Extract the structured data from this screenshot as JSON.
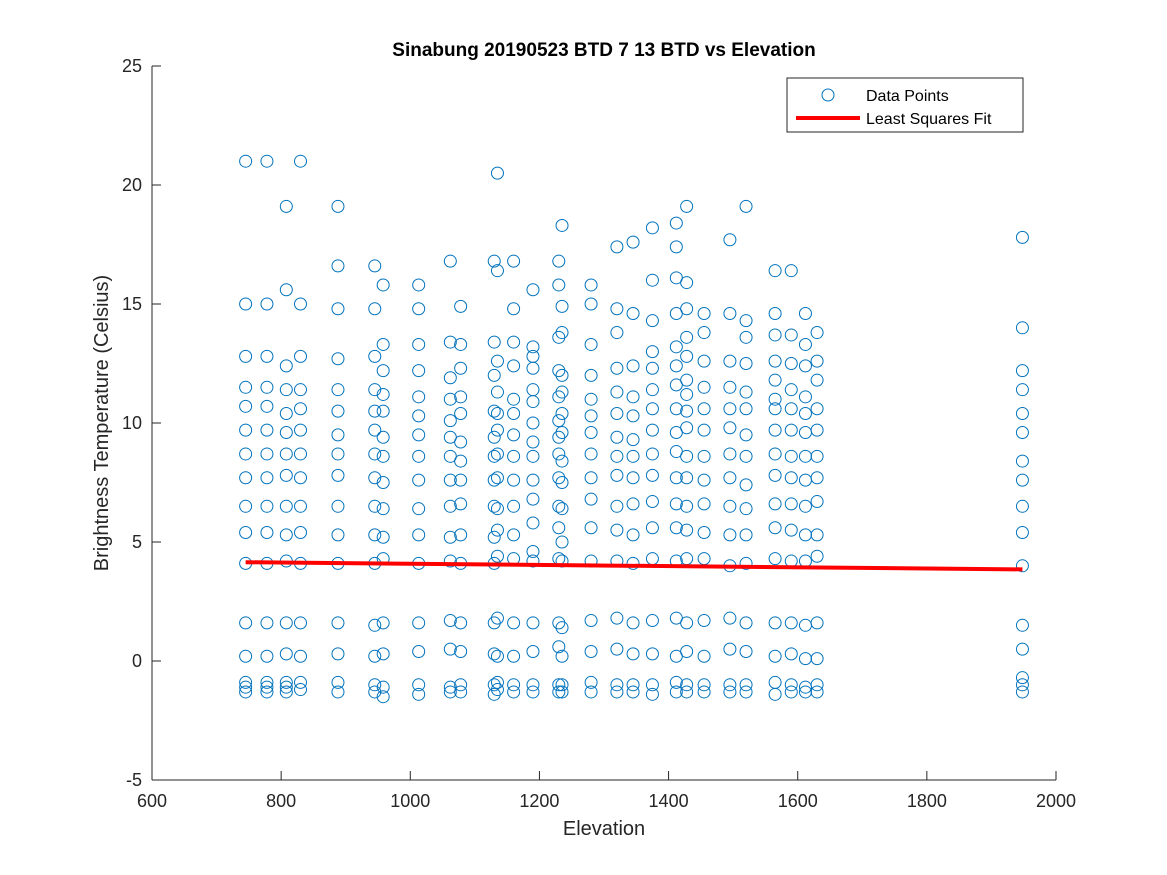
{
  "colors": {
    "points": "#0072BD",
    "fit": "#FF0000",
    "axis": "#262626",
    "background": "#FFFFFF"
  },
  "chart_data": {
    "type": "scatter",
    "title": "Sinabung 20190523 BTD 7 13 BTD vs Elevation",
    "xlabel": "Elevation",
    "ylabel": "Brightness Temperature (Celsius)",
    "xlim": [
      600,
      2000
    ],
    "ylim": [
      -5,
      25
    ],
    "xticks": [
      600,
      800,
      1000,
      1200,
      1400,
      1600,
      1800,
      2000
    ],
    "yticks": [
      -5,
      0,
      5,
      10,
      15,
      20,
      25
    ],
    "grid": false,
    "legend": {
      "position": "top-right",
      "entries": [
        "Data Points",
        "Least Squares Fit"
      ]
    },
    "series": [
      {
        "name": "Data Points",
        "marker": "circle",
        "columns": [
          {
            "x": 745,
            "y": [
              21.0,
              15.0,
              12.8,
              11.5,
              10.7,
              9.7,
              8.7,
              7.7,
              6.5,
              5.4,
              4.1,
              1.6,
              0.2,
              -0.9,
              -1.1,
              -1.3
            ]
          },
          {
            "x": 778,
            "y": [
              21.0,
              15.0,
              12.8,
              11.5,
              10.7,
              9.7,
              8.7,
              7.7,
              6.5,
              5.4,
              4.1,
              1.6,
              0.2,
              -0.9,
              -1.1,
              -1.3
            ]
          },
          {
            "x": 808,
            "y": [
              19.1,
              15.6,
              12.4,
              11.4,
              10.4,
              9.6,
              8.7,
              7.8,
              6.5,
              5.3,
              4.2,
              1.6,
              0.3,
              -0.9,
              -1.1,
              -1.3
            ]
          },
          {
            "x": 830,
            "y": [
              21.0,
              15.0,
              12.8,
              11.4,
              10.6,
              9.7,
              8.7,
              7.7,
              6.5,
              5.4,
              4.1,
              1.6,
              0.2,
              -0.9,
              -1.2
            ]
          },
          {
            "x": 888,
            "y": [
              19.1,
              16.6,
              14.8,
              12.7,
              11.4,
              10.5,
              9.5,
              8.7,
              7.8,
              6.5,
              5.3,
              4.1,
              1.6,
              0.3,
              -0.9,
              -1.3
            ]
          },
          {
            "x": 945,
            "y": [
              16.6,
              14.8,
              12.8,
              11.4,
              10.5,
              9.7,
              8.7,
              7.7,
              6.5,
              5.3,
              4.1,
              1.5,
              0.2,
              -1.0,
              -1.3
            ]
          },
          {
            "x": 958,
            "y": [
              15.8,
              13.3,
              12.2,
              11.2,
              10.5,
              9.4,
              8.6,
              7.5,
              6.4,
              5.2,
              4.3,
              1.6,
              0.3,
              -1.1,
              -1.5
            ]
          },
          {
            "x": 1013,
            "y": [
              15.8,
              14.8,
              13.3,
              12.2,
              11.1,
              10.3,
              9.5,
              8.6,
              7.6,
              6.4,
              5.3,
              4.1,
              1.6,
              0.4,
              -1.0,
              -1.4
            ]
          },
          {
            "x": 1062,
            "y": [
              16.8,
              13.4,
              11.9,
              11.0,
              10.1,
              9.4,
              8.6,
              7.6,
              6.5,
              5.2,
              4.2,
              1.7,
              0.5,
              -1.1,
              -1.3
            ]
          },
          {
            "x": 1078,
            "y": [
              14.9,
              13.3,
              12.3,
              11.1,
              10.4,
              9.2,
              8.4,
              7.6,
              6.6,
              5.3,
              4.1,
              1.6,
              0.4,
              -1.0,
              -1.3
            ]
          },
          {
            "x": 1130,
            "y": [
              16.8,
              13.4,
              12.0,
              10.5,
              9.4,
              8.6,
              7.6,
              6.5,
              5.2,
              4.1,
              1.6,
              0.3,
              -1.0,
              -1.4
            ]
          },
          {
            "x": 1135,
            "y": [
              20.5,
              16.4,
              12.6,
              11.3,
              10.4,
              9.7,
              8.7,
              7.7,
              6.4,
              5.5,
              4.4,
              1.8,
              0.2,
              -0.9,
              -1.2
            ]
          },
          {
            "x": 1160,
            "y": [
              16.8,
              14.8,
              13.4,
              12.4,
              11.0,
              10.4,
              9.5,
              8.6,
              7.6,
              6.5,
              5.3,
              4.3,
              1.6,
              0.2,
              -1.0,
              -1.3
            ]
          },
          {
            "x": 1190,
            "y": [
              15.6,
              13.2,
              12.8,
              12.3,
              11.4,
              10.9,
              10.0,
              9.2,
              8.6,
              7.6,
              6.8,
              5.8,
              4.6,
              4.2,
              1.6,
              0.4,
              -1.0,
              -1.3
            ]
          },
          {
            "x": 1230,
            "y": [
              16.8,
              15.8,
              13.6,
              12.2,
              11.1,
              10.1,
              9.4,
              8.7,
              7.7,
              6.5,
              5.6,
              4.3,
              1.6,
              0.6,
              -1.0,
              -1.3
            ]
          },
          {
            "x": 1235,
            "y": [
              18.3,
              14.9,
              13.8,
              12.0,
              11.3,
              10.4,
              9.6,
              8.4,
              7.5,
              6.4,
              5.0,
              4.2,
              1.4,
              0.2,
              -1.0,
              -1.3
            ]
          },
          {
            "x": 1280,
            "y": [
              15.8,
              15.0,
              13.3,
              12.0,
              11.0,
              10.3,
              9.6,
              8.7,
              7.7,
              6.8,
              5.6,
              4.2,
              1.7,
              0.4,
              -0.9,
              -1.3
            ]
          },
          {
            "x": 1320,
            "y": [
              17.4,
              14.8,
              13.8,
              12.3,
              11.3,
              10.4,
              9.4,
              8.6,
              7.8,
              6.5,
              5.5,
              4.2,
              1.8,
              0.5,
              -1.0,
              -1.3
            ]
          },
          {
            "x": 1345,
            "y": [
              17.6,
              14.6,
              12.4,
              11.1,
              10.3,
              9.3,
              8.6,
              7.7,
              6.6,
              5.3,
              4.1,
              1.6,
              0.3,
              -1.0,
              -1.3
            ]
          },
          {
            "x": 1375,
            "y": [
              18.2,
              16.0,
              14.3,
              13.0,
              12.3,
              11.4,
              10.6,
              9.7,
              8.7,
              7.8,
              6.7,
              5.6,
              4.3,
              1.7,
              0.3,
              -1.0,
              -1.4
            ]
          },
          {
            "x": 1412,
            "y": [
              18.4,
              17.4,
              16.1,
              14.6,
              13.2,
              12.4,
              11.6,
              10.6,
              9.6,
              8.8,
              7.7,
              6.6,
              5.6,
              4.2,
              1.8,
              0.2,
              -0.9,
              -1.3
            ]
          },
          {
            "x": 1428,
            "y": [
              19.1,
              15.9,
              14.8,
              13.6,
              12.8,
              11.8,
              11.2,
              10.5,
              9.8,
              8.6,
              7.7,
              6.5,
              5.5,
              4.3,
              1.6,
              0.4,
              -1.0,
              -1.3
            ]
          },
          {
            "x": 1455,
            "y": [
              14.6,
              13.8,
              12.6,
              11.5,
              10.6,
              9.7,
              8.6,
              7.6,
              6.6,
              5.4,
              4.3,
              1.7,
              0.2,
              -1.0,
              -1.3
            ]
          },
          {
            "x": 1495,
            "y": [
              17.7,
              14.6,
              12.6,
              11.5,
              10.6,
              9.8,
              8.7,
              7.7,
              6.5,
              5.3,
              4.0,
              1.8,
              0.5,
              -1.0,
              -1.3
            ]
          },
          {
            "x": 1520,
            "y": [
              19.1,
              14.3,
              13.6,
              12.5,
              11.3,
              10.6,
              9.5,
              8.6,
              7.4,
              6.4,
              5.3,
              4.1,
              1.6,
              0.4,
              -1.0,
              -1.3
            ]
          },
          {
            "x": 1565,
            "y": [
              16.4,
              14.6,
              13.7,
              12.6,
              11.8,
              11.0,
              10.6,
              9.7,
              8.7,
              7.8,
              6.6,
              5.6,
              4.3,
              1.6,
              0.2,
              -0.9,
              -1.4
            ]
          },
          {
            "x": 1590,
            "y": [
              16.4,
              13.7,
              12.5,
              11.4,
              10.6,
              9.7,
              8.6,
              7.7,
              6.6,
              5.5,
              4.2,
              1.6,
              0.3,
              -1.0,
              -1.3
            ]
          },
          {
            "x": 1612,
            "y": [
              14.6,
              13.3,
              12.4,
              11.1,
              10.4,
              9.6,
              8.6,
              7.6,
              6.5,
              5.3,
              4.2,
              1.5,
              0.1,
              -1.1,
              -1.3
            ]
          },
          {
            "x": 1630,
            "y": [
              13.8,
              12.6,
              11.8,
              10.6,
              9.7,
              8.6,
              7.7,
              6.7,
              5.3,
              4.4,
              1.6,
              0.1,
              -1.0,
              -1.3
            ]
          },
          {
            "x": 1948,
            "y": [
              17.8,
              14.0,
              12.2,
              11.4,
              10.4,
              9.6,
              8.4,
              7.6,
              6.5,
              5.4,
              4.0,
              1.5,
              0.5,
              -0.7,
              -1.0,
              -1.3
            ]
          }
        ]
      },
      {
        "name": "Least Squares Fit",
        "type": "line",
        "x": [
          745,
          1948
        ],
        "y": [
          4.15,
          3.85
        ]
      }
    ]
  }
}
